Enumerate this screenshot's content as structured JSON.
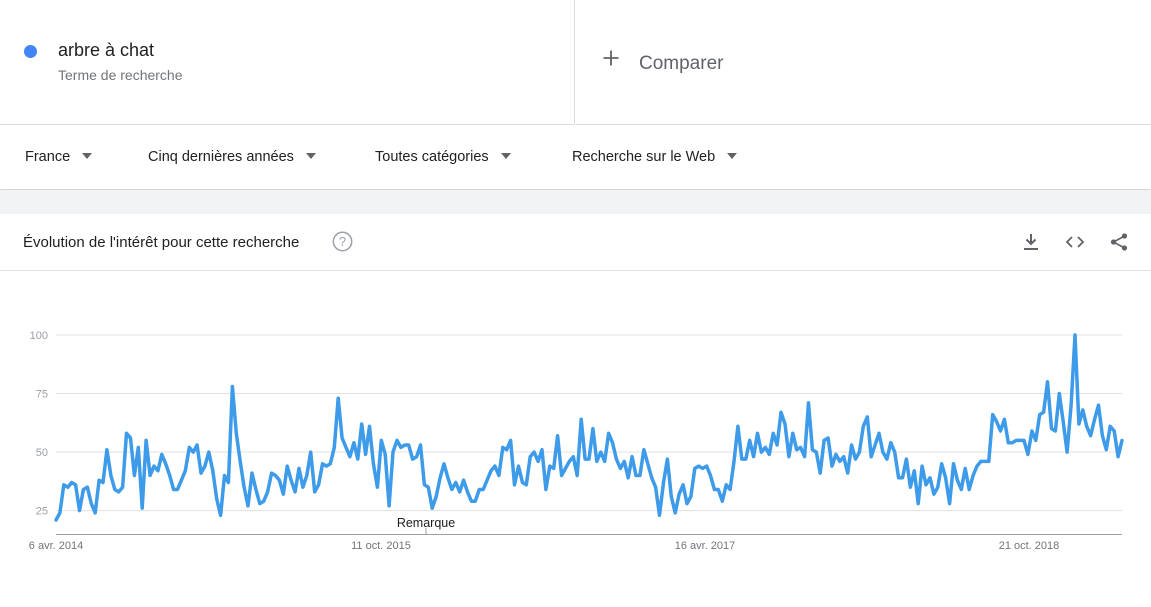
{
  "search_term": {
    "label": "arbre à chat",
    "sublabel": "Terme de recherche",
    "color": "#4285f4"
  },
  "compare": {
    "icon": "plus-icon",
    "label": "Comparer"
  },
  "filters": [
    {
      "label": "France"
    },
    {
      "label": "Cinq dernières années"
    },
    {
      "label": "Toutes catégories"
    },
    {
      "label": "Recherche sur le Web"
    }
  ],
  "panel": {
    "title": "Évolution de l'intérêt pour cette recherche",
    "icons": [
      "help-icon",
      "download-icon",
      "embed-code-icon",
      "share-icon"
    ]
  },
  "chart_data": {
    "type": "line",
    "series": [
      {
        "values": [
          21,
          24,
          36,
          35,
          37,
          36,
          25,
          34,
          35,
          28,
          24,
          38,
          37,
          51,
          40,
          34,
          33,
          35,
          58,
          56,
          40,
          52,
          26,
          55,
          40,
          44,
          42,
          49,
          45,
          40,
          34,
          34,
          38,
          42,
          52,
          50,
          53,
          41,
          44,
          50,
          42,
          30,
          23,
          40,
          37,
          78,
          58,
          46,
          35,
          27,
          41,
          34,
          28,
          29,
          33,
          41,
          40,
          38,
          32,
          44,
          38,
          33,
          43,
          35,
          40,
          50,
          33,
          36,
          45,
          44,
          45,
          52,
          73,
          56,
          52,
          48,
          54,
          47,
          62,
          49,
          61,
          45,
          35,
          55,
          49,
          27,
          50,
          55,
          52,
          53,
          53,
          47,
          48,
          53,
          36,
          35,
          26,
          31,
          39,
          45,
          39,
          34,
          37,
          33,
          38,
          33,
          29,
          29,
          34,
          34,
          38,
          42,
          44,
          40,
          52,
          51,
          55,
          36,
          44,
          37,
          36,
          48,
          50,
          46,
          51,
          34,
          44,
          43,
          57,
          40,
          43,
          46,
          48,
          40,
          64,
          47,
          47,
          60,
          46,
          50,
          46,
          58,
          54,
          47,
          43,
          46,
          39,
          48,
          40,
          40,
          51,
          45,
          39,
          35,
          23,
          37,
          47,
          31,
          24,
          32,
          36,
          28,
          31,
          43,
          44,
          43,
          44,
          40,
          34,
          34,
          29,
          36,
          34,
          46,
          61,
          47,
          47,
          55,
          48,
          58,
          50,
          52,
          49,
          58,
          53,
          67,
          62,
          48,
          58,
          51,
          52,
          48,
          71,
          51,
          50,
          41,
          55,
          56,
          44,
          49,
          46,
          48,
          41,
          53,
          47,
          50,
          61,
          65,
          48,
          53,
          58,
          50,
          47,
          54,
          50,
          39,
          39,
          47,
          35,
          42,
          28,
          44,
          36,
          39,
          32,
          35,
          45,
          39,
          28,
          45,
          38,
          34,
          43,
          34,
          40,
          44,
          46,
          46,
          46,
          66,
          63,
          59,
          64,
          54,
          54,
          55,
          55,
          55,
          49,
          59,
          55,
          66,
          67,
          80,
          60,
          59,
          75,
          63,
          50,
          70,
          100,
          62,
          68,
          61,
          57,
          64,
          70,
          57,
          51,
          61,
          59,
          48,
          55
        ],
        "color": "#4285f4"
      }
    ],
    "x_ticks": [
      "6 avr. 2014",
      "11 oct. 2015",
      "16 avr. 2017",
      "21 oct. 2018"
    ],
    "y_ticks": [
      25,
      50,
      75,
      100
    ],
    "ylim": [
      15,
      100
    ],
    "grid": true,
    "annotation": "Remarque"
  }
}
